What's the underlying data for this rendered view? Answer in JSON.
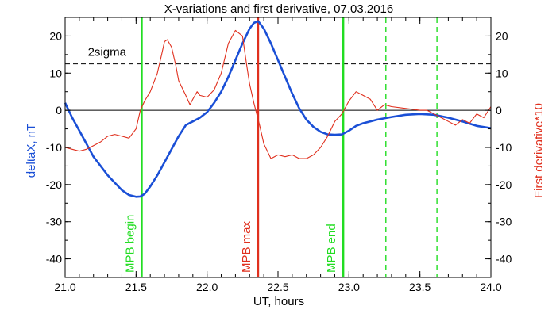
{
  "chart_data": {
    "type": "line",
    "title": "X-variations and first derivative, 07.03.2016",
    "xlabel": "UT, hours",
    "ylabel_left": "deltaX, nT",
    "ylabel_right": "First derivative*10",
    "xlim": [
      21.0,
      24.0
    ],
    "ylim": [
      -45,
      25
    ],
    "x_ticks": [
      "21.0",
      "21.5",
      "22.0",
      "22.5",
      "23.0",
      "23.5",
      "24.0"
    ],
    "x_tick_values": [
      21.0,
      21.5,
      22.0,
      22.5,
      23.0,
      23.5,
      24.0
    ],
    "y_ticks": [
      "20",
      "10",
      "0",
      "-10",
      "-20",
      "-30",
      "-40"
    ],
    "y_tick_values": [
      20,
      10,
      0,
      -10,
      -20,
      -30,
      -40
    ],
    "colors": {
      "deltaX": "#1a4fd6",
      "derivative": "#e0301e",
      "mpb_begin_end": "#22dd22",
      "mpb_max": "#e0301e",
      "axis": "#000000"
    },
    "series": [
      {
        "name": "deltaX, nT",
        "x": [
          21.0,
          21.05,
          21.1,
          21.15,
          21.2,
          21.25,
          21.3,
          21.35,
          21.4,
          21.45,
          21.5,
          21.53,
          21.56,
          21.6,
          21.65,
          21.7,
          21.75,
          21.8,
          21.85,
          21.9,
          21.95,
          22.0,
          22.05,
          22.1,
          22.15,
          22.2,
          22.25,
          22.3,
          22.33,
          22.36,
          22.4,
          22.45,
          22.5,
          22.55,
          22.6,
          22.65,
          22.7,
          22.75,
          22.8,
          22.85,
          22.9,
          22.95,
          23.0,
          23.05,
          23.1,
          23.15,
          23.2,
          23.3,
          23.4,
          23.5,
          23.6,
          23.7,
          23.8,
          23.9,
          24.0
        ],
        "values": [
          2,
          -2,
          -5.5,
          -9,
          -12.5,
          -15,
          -17.5,
          -19.5,
          -21.5,
          -22.8,
          -23.3,
          -23.2,
          -22.5,
          -20.5,
          -17.5,
          -14,
          -10.5,
          -7,
          -4,
          -3,
          -2,
          -0.5,
          2,
          5,
          9,
          13.5,
          18,
          22,
          23.5,
          24,
          22,
          18,
          13.5,
          9,
          4.5,
          0.5,
          -2.5,
          -4.5,
          -5.8,
          -6.5,
          -6.6,
          -6.5,
          -5.5,
          -4.2,
          -3.5,
          -3,
          -2.5,
          -1.8,
          -1.2,
          -1,
          -1.2,
          -2,
          -3,
          -4.2,
          -4.8
        ]
      },
      {
        "name": "First derivative*10",
        "x": [
          21.0,
          21.05,
          21.1,
          21.15,
          21.2,
          21.25,
          21.3,
          21.35,
          21.4,
          21.45,
          21.5,
          21.53,
          21.56,
          21.6,
          21.65,
          21.68,
          21.7,
          21.72,
          21.75,
          21.78,
          21.8,
          21.85,
          21.88,
          21.9,
          21.93,
          21.95,
          22.0,
          22.05,
          22.1,
          22.15,
          22.2,
          22.25,
          22.28,
          22.3,
          22.33,
          22.35,
          22.37,
          22.4,
          22.45,
          22.5,
          22.55,
          22.6,
          22.65,
          22.7,
          22.75,
          22.8,
          22.85,
          22.9,
          22.95,
          23.0,
          23.05,
          23.1,
          23.15,
          23.2,
          23.25,
          23.3,
          23.4,
          23.5,
          23.55,
          23.6,
          23.65,
          23.7,
          23.75,
          23.8,
          23.85,
          23.9,
          23.95,
          24.0
        ],
        "values": [
          -10,
          -10.5,
          -11,
          -10.5,
          -9.5,
          -8.5,
          -7,
          -6.5,
          -7,
          -7.5,
          -5,
          0,
          2.5,
          5,
          10,
          15,
          18.5,
          19,
          17,
          12,
          8,
          4,
          1.5,
          3,
          5,
          4,
          3.5,
          5.5,
          10,
          18,
          21.5,
          20,
          12,
          7,
          2,
          -1,
          -4,
          -9,
          -13,
          -12,
          -12.5,
          -12,
          -13,
          -13,
          -12,
          -10,
          -7,
          -3,
          -1,
          2.5,
          5,
          4,
          3,
          0,
          1.5,
          1,
          0.5,
          0,
          0,
          -1,
          -2,
          -3,
          -4,
          -2.5,
          -3.5,
          -1,
          -2,
          1
        ]
      }
    ],
    "reference_lines": {
      "zero": 0,
      "sigma": 12.5,
      "sigma_label": "2sigma"
    },
    "markers": [
      {
        "label": "MPB begin",
        "x": 21.54,
        "style": "solid",
        "color_key": "mpb_begin_end"
      },
      {
        "label": "MPB max",
        "x": 22.36,
        "style": "solid",
        "color_key": "mpb_max"
      },
      {
        "label": "MPB end",
        "x": 22.96,
        "style": "solid",
        "color_key": "mpb_begin_end"
      },
      {
        "label": "",
        "x": 23.26,
        "style": "dashed",
        "color_key": "mpb_begin_end"
      },
      {
        "label": "",
        "x": 23.62,
        "style": "dashed",
        "color_key": "mpb_begin_end"
      }
    ]
  }
}
